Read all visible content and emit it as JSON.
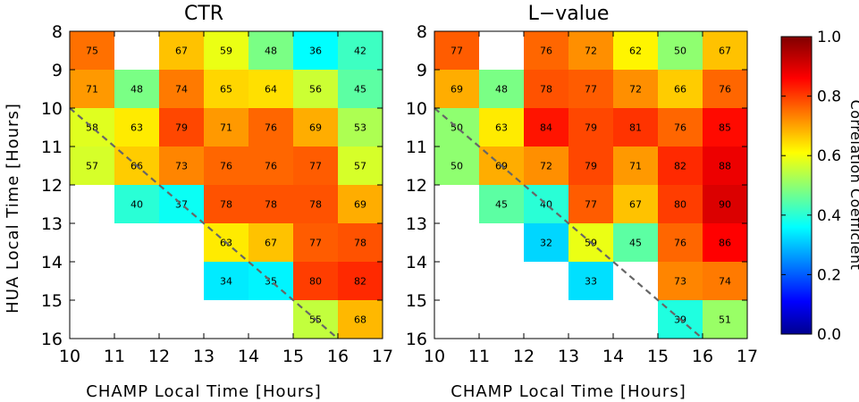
{
  "chart_data": [
    {
      "type": "heatmap",
      "title": "CTR",
      "xlabel": "CHAMP Local Time [Hours]",
      "ylabel": "HUA Local Time [Hours]",
      "x_ticks": [
        "10",
        "11",
        "12",
        "13",
        "14",
        "15",
        "16",
        "17"
      ],
      "y_ticks": [
        "8",
        "9",
        "10",
        "11",
        "12",
        "13",
        "14",
        "15",
        "16"
      ],
      "x_range": [
        10,
        17
      ],
      "y_range": [
        8,
        16
      ],
      "y_inverted": true,
      "reference_line": "dashed diagonal from (10,10) to (16,16)",
      "cells": [
        {
          "x": 10,
          "y": 8,
          "value": 75,
          "label": "75"
        },
        {
          "x": 12,
          "y": 8,
          "value": 67,
          "label": "67"
        },
        {
          "x": 13,
          "y": 8,
          "value": 59,
          "label": "59"
        },
        {
          "x": 14,
          "y": 8,
          "value": 48,
          "label": "48"
        },
        {
          "x": 15,
          "y": 8,
          "value": 36,
          "label": "36"
        },
        {
          "x": 16,
          "y": 8,
          "value": 42,
          "label": "42"
        },
        {
          "x": 10,
          "y": 9,
          "value": 71,
          "label": "71"
        },
        {
          "x": 11,
          "y": 9,
          "value": 48,
          "label": "48"
        },
        {
          "x": 12,
          "y": 9,
          "value": 74,
          "label": "74"
        },
        {
          "x": 13,
          "y": 9,
          "value": 65,
          "label": "65"
        },
        {
          "x": 14,
          "y": 9,
          "value": 64,
          "label": "64"
        },
        {
          "x": 15,
          "y": 9,
          "value": 56,
          "label": "56"
        },
        {
          "x": 16,
          "y": 9,
          "value": 45,
          "label": "45"
        },
        {
          "x": 10,
          "y": 10,
          "value": 58,
          "label": "58"
        },
        {
          "x": 11,
          "y": 10,
          "value": 63,
          "label": "63"
        },
        {
          "x": 12,
          "y": 10,
          "value": 79,
          "label": "79"
        },
        {
          "x": 13,
          "y": 10,
          "value": 71,
          "label": "71"
        },
        {
          "x": 14,
          "y": 10,
          "value": 76,
          "label": "76"
        },
        {
          "x": 15,
          "y": 10,
          "value": 69,
          "label": "69"
        },
        {
          "x": 16,
          "y": 10,
          "value": 53,
          "label": "53"
        },
        {
          "x": 10,
          "y": 11,
          "value": 57,
          "label": "57"
        },
        {
          "x": 11,
          "y": 11,
          "value": 66,
          "label": "66"
        },
        {
          "x": 12,
          "y": 11,
          "value": 73,
          "label": "73"
        },
        {
          "x": 13,
          "y": 11,
          "value": 76,
          "label": "76"
        },
        {
          "x": 14,
          "y": 11,
          "value": 76,
          "label": "76"
        },
        {
          "x": 15,
          "y": 11,
          "value": 77,
          "label": "77"
        },
        {
          "x": 16,
          "y": 11,
          "value": 57,
          "label": "57"
        },
        {
          "x": 11,
          "y": 12,
          "value": 40,
          "label": "40"
        },
        {
          "x": 12,
          "y": 12,
          "value": 37,
          "label": "37"
        },
        {
          "x": 13,
          "y": 12,
          "value": 78,
          "label": "78"
        },
        {
          "x": 14,
          "y": 12,
          "value": 78,
          "label": "78"
        },
        {
          "x": 15,
          "y": 12,
          "value": 78,
          "label": "78"
        },
        {
          "x": 16,
          "y": 12,
          "value": 69,
          "label": "69"
        },
        {
          "x": 13,
          "y": 13,
          "value": 63,
          "label": "63"
        },
        {
          "x": 14,
          "y": 13,
          "value": 67,
          "label": "67"
        },
        {
          "x": 15,
          "y": 13,
          "value": 77,
          "label": "77"
        },
        {
          "x": 16,
          "y": 13,
          "value": 78,
          "label": "78"
        },
        {
          "x": 13,
          "y": 14,
          "value": 34,
          "label": "34"
        },
        {
          "x": 14,
          "y": 14,
          "value": 35,
          "label": "35"
        },
        {
          "x": 15,
          "y": 14,
          "value": 80,
          "label": "80"
        },
        {
          "x": 16,
          "y": 14,
          "value": 82,
          "label": "82"
        },
        {
          "x": 15,
          "y": 15,
          "value": 55,
          "label": "55"
        },
        {
          "x": 16,
          "y": 15,
          "value": 68,
          "label": "68"
        }
      ]
    },
    {
      "type": "heatmap",
      "title": "L−value",
      "xlabel": "CHAMP Local Time [Hours]",
      "ylabel": "",
      "x_ticks": [
        "10",
        "11",
        "12",
        "13",
        "14",
        "15",
        "16",
        "17"
      ],
      "y_ticks": [
        "8",
        "9",
        "10",
        "11",
        "12",
        "13",
        "14",
        "15",
        "16"
      ],
      "x_range": [
        10,
        17
      ],
      "y_range": [
        8,
        16
      ],
      "y_inverted": true,
      "reference_line": "dashed diagonal from (10,10) to (16,16)",
      "cells": [
        {
          "x": 10,
          "y": 8,
          "value": 77,
          "label": "77"
        },
        {
          "x": 12,
          "y": 8,
          "value": 76,
          "label": "76"
        },
        {
          "x": 13,
          "y": 8,
          "value": 72,
          "label": "72"
        },
        {
          "x": 14,
          "y": 8,
          "value": 62,
          "label": "62"
        },
        {
          "x": 15,
          "y": 8,
          "value": 50,
          "label": "50"
        },
        {
          "x": 16,
          "y": 8,
          "value": 67,
          "label": "67"
        },
        {
          "x": 10,
          "y": 9,
          "value": 69,
          "label": "69"
        },
        {
          "x": 11,
          "y": 9,
          "value": 48,
          "label": "48"
        },
        {
          "x": 12,
          "y": 9,
          "value": 78,
          "label": "78"
        },
        {
          "x": 13,
          "y": 9,
          "value": 77,
          "label": "77"
        },
        {
          "x": 14,
          "y": 9,
          "value": 72,
          "label": "72"
        },
        {
          "x": 15,
          "y": 9,
          "value": 66,
          "label": "66"
        },
        {
          "x": 16,
          "y": 9,
          "value": 76,
          "label": "76"
        },
        {
          "x": 10,
          "y": 10,
          "value": 50,
          "label": "50"
        },
        {
          "x": 11,
          "y": 10,
          "value": 63,
          "label": "63"
        },
        {
          "x": 12,
          "y": 10,
          "value": 84,
          "label": "84"
        },
        {
          "x": 13,
          "y": 10,
          "value": 79,
          "label": "79"
        },
        {
          "x": 14,
          "y": 10,
          "value": 81,
          "label": "81"
        },
        {
          "x": 15,
          "y": 10,
          "value": 76,
          "label": "76"
        },
        {
          "x": 16,
          "y": 10,
          "value": 85,
          "label": "85"
        },
        {
          "x": 10,
          "y": 11,
          "value": 50,
          "label": "50"
        },
        {
          "x": 11,
          "y": 11,
          "value": 69,
          "label": "69"
        },
        {
          "x": 12,
          "y": 11,
          "value": 72,
          "label": "72"
        },
        {
          "x": 13,
          "y": 11,
          "value": 79,
          "label": "79"
        },
        {
          "x": 14,
          "y": 11,
          "value": 71,
          "label": "71"
        },
        {
          "x": 15,
          "y": 11,
          "value": 82,
          "label": "82"
        },
        {
          "x": 16,
          "y": 11,
          "value": 88,
          "label": "88"
        },
        {
          "x": 11,
          "y": 12,
          "value": 45,
          "label": "45"
        },
        {
          "x": 12,
          "y": 12,
          "value": 40,
          "label": "40"
        },
        {
          "x": 13,
          "y": 12,
          "value": 77,
          "label": "77"
        },
        {
          "x": 14,
          "y": 12,
          "value": 67,
          "label": "67"
        },
        {
          "x": 15,
          "y": 12,
          "value": 80,
          "label": "80"
        },
        {
          "x": 16,
          "y": 12,
          "value": 90,
          "label": "90"
        },
        {
          "x": 12,
          "y": 13,
          "value": 32,
          "label": "32"
        },
        {
          "x": 13,
          "y": 13,
          "value": 59,
          "label": "59"
        },
        {
          "x": 14,
          "y": 13,
          "value": 45,
          "label": "45"
        },
        {
          "x": 15,
          "y": 13,
          "value": 76,
          "label": "76"
        },
        {
          "x": 16,
          "y": 13,
          "value": 86,
          "label": "86"
        },
        {
          "x": 13,
          "y": 14,
          "value": 33,
          "label": "33"
        },
        {
          "x": 15,
          "y": 14,
          "value": 73,
          "label": "73"
        },
        {
          "x": 16,
          "y": 14,
          "value": 74,
          "label": "74"
        },
        {
          "x": 15,
          "y": 15,
          "value": 39,
          "label": "39"
        },
        {
          "x": 16,
          "y": 15,
          "value": 51,
          "label": "51"
        }
      ]
    }
  ],
  "colorbar": {
    "label": "Correlation Coefficient",
    "range": [
      0,
      1
    ],
    "ticks": [
      "0.0",
      "0.2",
      "0.4",
      "0.6",
      "0.8",
      "1.0"
    ],
    "colormap": "jet",
    "colormap_stops": [
      "#00008f",
      "#0000ff",
      "#00ffff",
      "#ffff00",
      "#ff0000",
      "#800000"
    ]
  }
}
